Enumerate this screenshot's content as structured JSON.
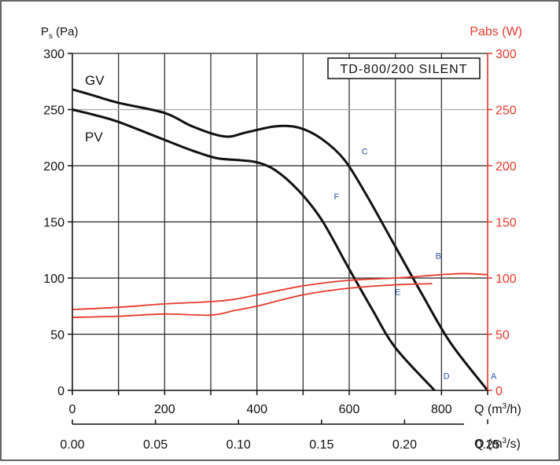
{
  "chart_data": {
    "type": "line",
    "model_label": "TD-800/200 SILENT",
    "left_axis": {
      "label_main": "P",
      "label_sub": "s",
      "label_unit": " (Pa)",
      "range": [
        0,
        300
      ],
      "ticks": [
        "0",
        "50",
        "100",
        "150",
        "200",
        "250",
        "300"
      ]
    },
    "right_axis": {
      "label": "Pabs (W)",
      "range": [
        0,
        300
      ],
      "ticks": [
        "0",
        "50",
        "100",
        "150",
        "200",
        "250",
        "300"
      ],
      "color": "#e8392b"
    },
    "x_axis_m3h": {
      "label_pre": "Q (m",
      "label_sup": "3",
      "label_post": "/h)",
      "range": [
        0,
        900
      ],
      "ticks": [
        "0",
        "200",
        "400",
        "600",
        "800"
      ]
    },
    "x_axis_m3s": {
      "label_pre": "Q (m",
      "label_sup": "3",
      "label_post": "/s)",
      "ticks": [
        "0.00",
        "0.05",
        "0.10",
        "0.15",
        "0.20",
        "0.25"
      ]
    },
    "grid": true,
    "series": [
      {
        "name": "GV",
        "axis": "pressure",
        "color": "#111111",
        "points": [
          [
            0,
            268
          ],
          [
            50,
            262
          ],
          [
            100,
            256
          ],
          [
            200,
            247
          ],
          [
            260,
            235
          ],
          [
            330,
            226
          ],
          [
            380,
            230
          ],
          [
            440,
            235
          ],
          [
            490,
            234
          ],
          [
            540,
            224
          ],
          [
            590,
            205
          ],
          [
            640,
            172
          ],
          [
            700,
            128
          ],
          [
            760,
            84
          ],
          [
            820,
            42
          ],
          [
            900,
            0
          ]
        ]
      },
      {
        "name": "PV",
        "axis": "pressure",
        "color": "#111111",
        "points": [
          [
            0,
            250
          ],
          [
            50,
            245
          ],
          [
            100,
            239
          ],
          [
            200,
            223
          ],
          [
            250,
            215
          ],
          [
            310,
            207
          ],
          [
            360,
            205
          ],
          [
            400,
            203
          ],
          [
            440,
            196
          ],
          [
            490,
            178
          ],
          [
            540,
            152
          ],
          [
            600,
            108
          ],
          [
            650,
            72
          ],
          [
            700,
            38
          ],
          [
            785,
            0
          ]
        ]
      },
      {
        "name": "",
        "axis": "power",
        "color": "#e8392b",
        "points": [
          [
            0,
            72
          ],
          [
            100,
            74
          ],
          [
            200,
            77
          ],
          [
            300,
            79
          ],
          [
            350,
            81
          ],
          [
            400,
            85
          ],
          [
            500,
            93
          ],
          [
            600,
            98
          ],
          [
            700,
            100
          ],
          [
            800,
            103
          ],
          [
            850,
            104
          ],
          [
            900,
            103
          ]
        ]
      },
      {
        "name": "",
        "axis": "power",
        "color": "#e8392b",
        "points": [
          [
            0,
            65
          ],
          [
            100,
            66
          ],
          [
            200,
            68
          ],
          [
            300,
            67
          ],
          [
            350,
            71
          ],
          [
            400,
            75
          ],
          [
            500,
            85
          ],
          [
            600,
            91
          ],
          [
            700,
            94
          ],
          [
            780,
            95
          ]
        ]
      }
    ],
    "operating_points": [
      {
        "label": "A",
        "x": 900,
        "y": 10
      },
      {
        "label": "B",
        "x": 780,
        "y": 117
      },
      {
        "label": "C",
        "x": 620,
        "y": 210
      },
      {
        "label": "D",
        "x": 797,
        "y": 10
      },
      {
        "label": "E",
        "x": 692,
        "y": 85
      },
      {
        "label": "F",
        "x": 560,
        "y": 170
      }
    ]
  }
}
